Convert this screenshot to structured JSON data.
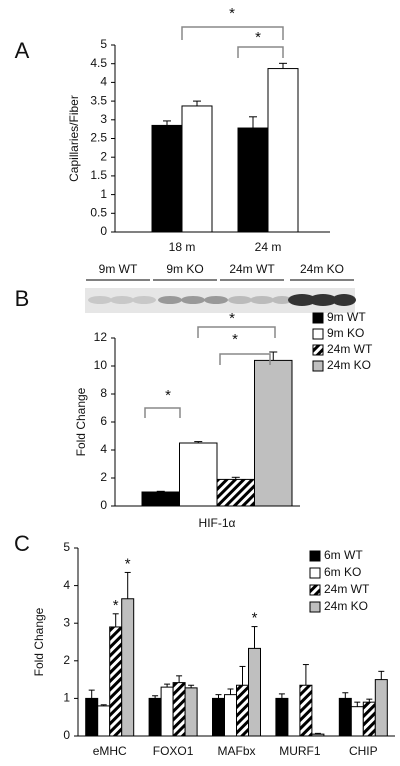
{
  "chart_data": [
    {
      "type": "bar",
      "panel_label": "A",
      "y_label": "Capillaries/Fiber",
      "categories": [
        "18 m",
        "24 m"
      ],
      "series": [
        {
          "color": "#000000",
          "values": [
            2.85,
            2.78
          ],
          "errors": [
            0.12,
            0.3
          ]
        },
        {
          "color": "#ffffff",
          "values": [
            3.37,
            4.37
          ],
          "errors": [
            0.13,
            0.14
          ]
        }
      ],
      "ylim": [
        0,
        5
      ],
      "yticks": [
        0,
        0.5,
        1,
        1.5,
        2,
        2.5,
        3,
        3.5,
        4,
        4.5,
        5
      ],
      "annotations": [
        "*",
        "*"
      ],
      "legend": false
    },
    {
      "type": "bar",
      "panel_label": "B",
      "y_label": "Fold Change",
      "lanes": [
        "9m WT",
        "9m KO",
        "24m WT",
        "24m KO"
      ],
      "categories": [
        "HIF-1α"
      ],
      "series": [
        {
          "name": "9m WT",
          "color": "#000000",
          "values": [
            1.0
          ],
          "errors": [
            0.05
          ]
        },
        {
          "name": "9m KO",
          "color": "#ffffff",
          "values": [
            4.5
          ],
          "errors": [
            0.1
          ]
        },
        {
          "name": "24m WT",
          "color": "#ffffff",
          "hatch": true,
          "values": [
            1.9
          ],
          "errors": [
            0.15
          ]
        },
        {
          "name": "24m KO",
          "color": "#bfbfbf",
          "values": [
            10.4
          ],
          "errors": [
            0.6
          ]
        }
      ],
      "ylim": [
        0,
        12
      ],
      "yticks": [
        0,
        2,
        4,
        6,
        8,
        10,
        12
      ],
      "annotations": [
        "*",
        "*",
        "*"
      ],
      "legend": true
    },
    {
      "type": "bar",
      "panel_label": "C",
      "y_label": "Fold Change",
      "categories": [
        "eMHC",
        "FOXO1",
        "MAFbx",
        "MURF1",
        "CHIP"
      ],
      "series": [
        {
          "name": "6m WT",
          "color": "#000000",
          "values": [
            1.0,
            1.0,
            1.0,
            1.0,
            1.0
          ],
          "errors": [
            0.22,
            0.07,
            0.1,
            0.12,
            0.15
          ]
        },
        {
          "name": "6m KO",
          "color": "#ffffff",
          "values": [
            0.8,
            1.3,
            1.1,
            null,
            0.78
          ],
          "errors": [
            0.03,
            0.08,
            0.15,
            null,
            0.12
          ]
        },
        {
          "name": "24m WT",
          "color": "#ffffff",
          "hatch": true,
          "values": [
            2.9,
            1.42,
            1.35,
            1.35,
            0.9
          ],
          "errors": [
            0.35,
            0.18,
            0.5,
            0.55,
            0.08
          ]
        },
        {
          "name": "24m KO",
          "color": "#bfbfbf",
          "values": [
            3.65,
            1.28,
            2.33,
            0.05,
            1.5
          ],
          "errors": [
            0.7,
            0.07,
            0.58,
            0.02,
            0.22
          ]
        }
      ],
      "ylim": [
        0,
        5
      ],
      "yticks": [
        0,
        1,
        2,
        3,
        4,
        5
      ],
      "annotations": [
        "*",
        "*",
        "*"
      ],
      "legend": true
    }
  ]
}
